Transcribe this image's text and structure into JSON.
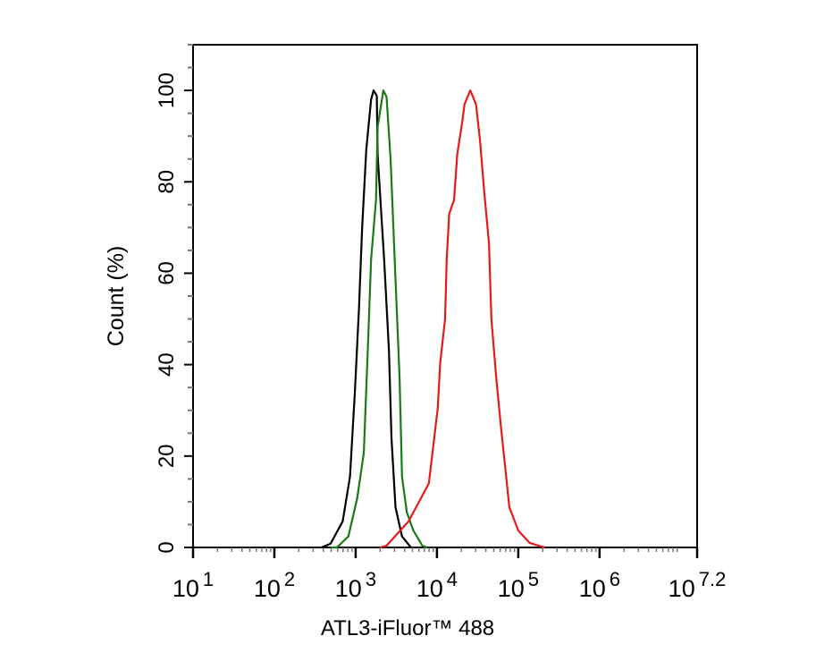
{
  "chart_data": {
    "type": "line",
    "title": "",
    "xlabel": "ATL3-iFluor™ 488",
    "ylabel": "Count  (%)",
    "xscale": "log",
    "xlim": [
      10,
      15848932
    ],
    "ylim": [
      0,
      110
    ],
    "grid": false,
    "x_ticks": [
      {
        "base": "10",
        "exp": "1",
        "value": 10
      },
      {
        "base": "10",
        "exp": "2",
        "value": 100
      },
      {
        "base": "10",
        "exp": "3",
        "value": 1000
      },
      {
        "base": "10",
        "exp": "4",
        "value": 10000
      },
      {
        "base": "10",
        "exp": "5",
        "value": 100000
      },
      {
        "base": "10",
        "exp": "6",
        "value": 1000000
      },
      {
        "base": "10",
        "exp": "7.2",
        "value": 15848932
      }
    ],
    "y_ticks": [
      "0",
      "20",
      "40",
      "60",
      "80",
      "100"
    ],
    "series": [
      {
        "color": "#000000",
        "x": [
          380,
          490,
          692,
          851,
          977,
          1096,
          1202,
          1349,
          1549,
          1660,
          1820,
          1862,
          2239,
          2570,
          2754,
          3090,
          3715,
          4786
        ],
        "y": [
          0,
          0.8,
          5.7,
          15.5,
          33.8,
          52,
          70,
          87,
          98,
          100,
          98.8,
          86,
          63,
          43,
          24,
          8.8,
          2.4,
          0
        ]
      },
      {
        "color": "#1a7a1a",
        "x": [
          490,
          589,
          813,
          1047,
          1259,
          1413,
          1549,
          1778,
          1862,
          2188,
          2399,
          2692,
          3020,
          3467,
          3715,
          4266,
          5129,
          6607,
          7586
        ],
        "y": [
          0,
          0,
          2.4,
          10.8,
          20.6,
          43.6,
          63,
          76,
          92,
          100,
          98.6,
          84.7,
          63,
          37,
          15.5,
          7.7,
          3.7,
          0.4,
          0
        ]
      },
      {
        "color": "#e8191a",
        "x": [
          1995,
          2399,
          4467,
          7943,
          10230,
          10960,
          12590,
          13180,
          14130,
          16220,
          17780,
          20420,
          21880,
          25700,
          30200,
          33880,
          38020,
          43650,
          46770,
          53700,
          60260,
          69180,
          77620,
          100000,
          138000,
          177800,
          213800
        ],
        "y": [
          0,
          0.4,
          5.7,
          14,
          30.5,
          40.3,
          50,
          63,
          73,
          76,
          86,
          93,
          97,
          100,
          97,
          89,
          78,
          66.6,
          50,
          37,
          27.5,
          17.5,
          8.8,
          3.7,
          1,
          0.4,
          0
        ]
      }
    ]
  }
}
